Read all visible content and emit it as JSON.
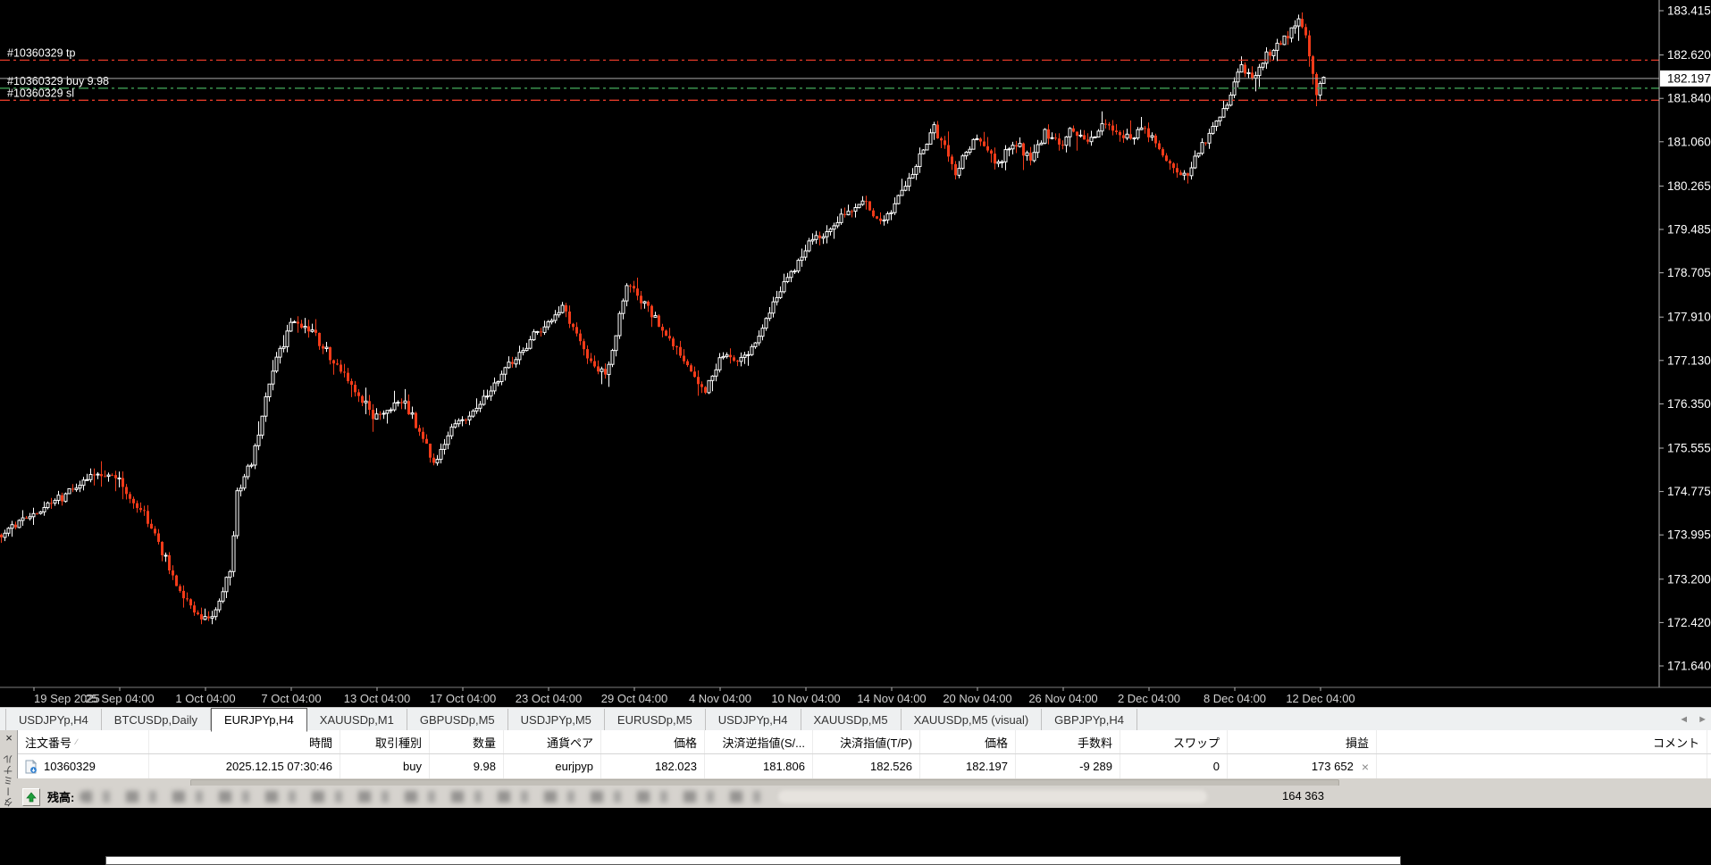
{
  "chart": {
    "current_price_tag": "182.197"
  },
  "chart_data": {
    "type": "candlestick",
    "symbol": "EURJPYp",
    "timeframe": "H4",
    "title": "EURJPYp,H4",
    "y_ticks": [
      "183.415",
      "182.620",
      "181.840",
      "181.060",
      "180.265",
      "179.485",
      "178.705",
      "177.910",
      "177.130",
      "176.350",
      "175.555",
      "174.775",
      "173.995",
      "173.200",
      "172.420",
      "171.640"
    ],
    "y_range": [
      171.64,
      183.415
    ],
    "x_ticks": [
      "19 Sep 2025",
      "25 Sep 04:00",
      "1 Oct 04:00",
      "7 Oct 04:00",
      "13 Oct 04:00",
      "17 Oct 04:00",
      "23 Oct 04:00",
      "29 Oct 04:00",
      "4 Nov 04:00",
      "10 Nov 04:00",
      "14 Nov 04:00",
      "20 Nov 04:00",
      "26 Nov 04:00",
      "2 Dec 04:00",
      "8 Dec 04:00",
      "12 Dec 04:00"
    ],
    "x_tick_first_index": 9,
    "x_tick_step": 24,
    "current_price": "182.197",
    "order_lines": [
      {
        "name": "tp",
        "price": 182.526,
        "style": "dashdot",
        "color": "#e23a28",
        "label": "#10360329 tp"
      },
      {
        "name": "buy",
        "price": 182.023,
        "style": "dashdot",
        "color": "#3f9e54",
        "label": "#10360329 buy 9.98"
      },
      {
        "name": "sl",
        "price": 181.806,
        "style": "dashdot",
        "color": "#e23a28",
        "label": "#10360329 sl"
      },
      {
        "name": "current",
        "price": 182.197,
        "style": "solid",
        "color": "#a8a8a8",
        "label": ""
      }
    ],
    "candles_count": 371,
    "seed": 1337,
    "anchors": [
      [
        0,
        174.0
      ],
      [
        8,
        174.35
      ],
      [
        14,
        174.55
      ],
      [
        20,
        174.8
      ],
      [
        27,
        175.15
      ],
      [
        33,
        174.95
      ],
      [
        40,
        174.35
      ],
      [
        45,
        173.7
      ],
      [
        50,
        173.0
      ],
      [
        55,
        172.55
      ],
      [
        58,
        172.45
      ],
      [
        61,
        172.75
      ],
      [
        63,
        173.25
      ],
      [
        64,
        173.35
      ],
      [
        66,
        174.75
      ],
      [
        70,
        175.3
      ],
      [
        76,
        177.0
      ],
      [
        82,
        177.9
      ],
      [
        88,
        177.55
      ],
      [
        92,
        177.2
      ],
      [
        100,
        176.5
      ],
      [
        104,
        176.15
      ],
      [
        109,
        176.3
      ],
      [
        113,
        176.35
      ],
      [
        118,
        175.75
      ],
      [
        121,
        175.3
      ],
      [
        125,
        175.8
      ],
      [
        128,
        176.0
      ],
      [
        136,
        176.55
      ],
      [
        143,
        177.1
      ],
      [
        150,
        177.65
      ],
      [
        157,
        178.05
      ],
      [
        162,
        177.5
      ],
      [
        166,
        176.95
      ],
      [
        169,
        176.9
      ],
      [
        172,
        177.6
      ],
      [
        175,
        178.55
      ],
      [
        179,
        178.2
      ],
      [
        183,
        177.9
      ],
      [
        188,
        177.45
      ],
      [
        191,
        177.15
      ],
      [
        195,
        176.75
      ],
      [
        197,
        176.6
      ],
      [
        200,
        177.0
      ],
      [
        203,
        177.3
      ],
      [
        206,
        177.1
      ],
      [
        209,
        177.25
      ],
      [
        214,
        177.9
      ],
      [
        220,
        178.6
      ],
      [
        226,
        179.2
      ],
      [
        230,
        179.4
      ],
      [
        234,
        179.65
      ],
      [
        238,
        179.85
      ],
      [
        242,
        180.0
      ],
      [
        246,
        179.6
      ],
      [
        250,
        179.9
      ],
      [
        255,
        180.5
      ],
      [
        261,
        181.3
      ],
      [
        264,
        181.0
      ],
      [
        267,
        180.5
      ],
      [
        270,
        180.9
      ],
      [
        273,
        181.15
      ],
      [
        276,
        180.85
      ],
      [
        279,
        180.7
      ],
      [
        284,
        181.05
      ],
      [
        288,
        180.7
      ],
      [
        292,
        181.25
      ],
      [
        296,
        181.0
      ],
      [
        300,
        181.3
      ],
      [
        304,
        181.0
      ],
      [
        308,
        181.35
      ],
      [
        312,
        181.2
      ],
      [
        316,
        181.1
      ],
      [
        320,
        181.3
      ],
      [
        324,
        180.9
      ],
      [
        328,
        180.55
      ],
      [
        332,
        180.5
      ],
      [
        336,
        181.0
      ],
      [
        340,
        181.45
      ],
      [
        344,
        181.9
      ],
      [
        347,
        182.45
      ],
      [
        350,
        182.15
      ],
      [
        353,
        182.55
      ],
      [
        356,
        182.75
      ],
      [
        359,
        182.9
      ],
      [
        363,
        183.25
      ],
      [
        365,
        182.95
      ],
      [
        367,
        182.35
      ],
      [
        368,
        181.95
      ],
      [
        369,
        182.1
      ],
      [
        370,
        182.2
      ]
    ],
    "colors": {
      "background": "#000000",
      "bull_stroke": "#ffffff",
      "bull_fill": "#000000",
      "bear": "#f23b19",
      "axis_text": "#ffffff",
      "date_text": "#d0d0d0",
      "axis_line": "#b5b5b5"
    }
  },
  "tabs": {
    "items": [
      {
        "label": "USDJPYp,H4",
        "active": false
      },
      {
        "label": "BTCUSDp,Daily",
        "active": false
      },
      {
        "label": "EURJPYp,H4",
        "active": true
      },
      {
        "label": "XAUUSDp,M1",
        "active": false
      },
      {
        "label": "GBPUSDp,M5",
        "active": false
      },
      {
        "label": "USDJPYp,M5",
        "active": false
      },
      {
        "label": "EURUSDp,M5",
        "active": false
      },
      {
        "label": "USDJPYp,H4",
        "active": false
      },
      {
        "label": "XAUUSDp,M5",
        "active": false
      },
      {
        "label": "XAUUSDp,M5 (visual)",
        "active": false
      },
      {
        "label": "GBPJPYp,H4",
        "active": false
      }
    ],
    "scroll_left_icon": "◄",
    "scroll_right_icon": "►"
  },
  "orders_table": {
    "close_button": "×",
    "sort_icon": "∕",
    "headers": [
      "注文番号",
      "時間",
      "取引種別",
      "数量",
      "通貨ペア",
      "価格",
      "決済逆指値(S/...",
      "決済指値(T/P)",
      "価格",
      "手数料",
      "スワップ",
      "損益",
      "コメント"
    ],
    "row": {
      "order_id": "10360329",
      "time": "2025.12.15 07:30:46",
      "type": "buy",
      "volume": "9.98",
      "symbol": "eurjpyp",
      "open_price": "182.023",
      "sl": "181.806",
      "tp": "182.526",
      "price": "182.197",
      "commission": "-9 289",
      "swap": "0",
      "profit": "173 652",
      "close_icon": "×",
      "comment": ""
    }
  },
  "terminal_strip": {
    "close_button": "×",
    "vertical_tab": "ターミナル"
  },
  "status_bar": {
    "balance_label": "残高:",
    "value_right": "164 363",
    "up_arrow_icon": "up-arrow",
    "up_arrow_color": "#1e9e3a"
  }
}
